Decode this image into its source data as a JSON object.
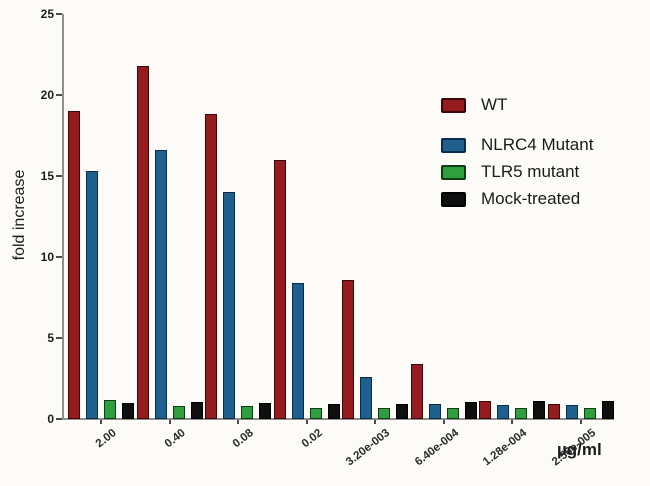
{
  "figure": {
    "background": "#fcfbf8",
    "axis_color": "#8f8f8f",
    "tick_color": "#4a4a4a",
    "text_color": "#1c1c1c"
  },
  "chart_data": {
    "type": "bar",
    "title": "",
    "xlabel": "µg/ml",
    "ylabel": "fold increase",
    "ylim": [
      0,
      25
    ],
    "yticks": [
      0,
      5,
      10,
      15,
      20,
      25
    ],
    "grid": false,
    "legend_position": "upper right",
    "categories": [
      "2.00",
      "0.40",
      "0.08",
      "0.02",
      "3.20e-003",
      "6.40e-004",
      "1.28e-004",
      "2.56e-005"
    ],
    "series": [
      {
        "name": "WT",
        "color": "#941c1f",
        "edge": "#3c0709",
        "values": [
          19.0,
          21.8,
          18.8,
          16.0,
          8.6,
          3.4,
          1.1,
          0.9
        ]
      },
      {
        "name": "NLRC4 Mutant",
        "color": "#20608f",
        "edge": "#0c2b49",
        "values": [
          15.3,
          16.6,
          14.0,
          8.4,
          2.6,
          0.9,
          0.85,
          0.85
        ]
      },
      {
        "name": "TLR5 mutant",
        "color": "#2e9e3f",
        "edge": "#0d3c15",
        "values": [
          1.2,
          0.8,
          0.8,
          0.7,
          0.65,
          0.7,
          0.7,
          0.7
        ]
      },
      {
        "name": "Mock-treated",
        "color": "#0f0f0f",
        "edge": "#000000",
        "values": [
          1.0,
          1.05,
          1.0,
          0.9,
          0.9,
          1.05,
          1.1,
          1.1
        ]
      }
    ]
  }
}
